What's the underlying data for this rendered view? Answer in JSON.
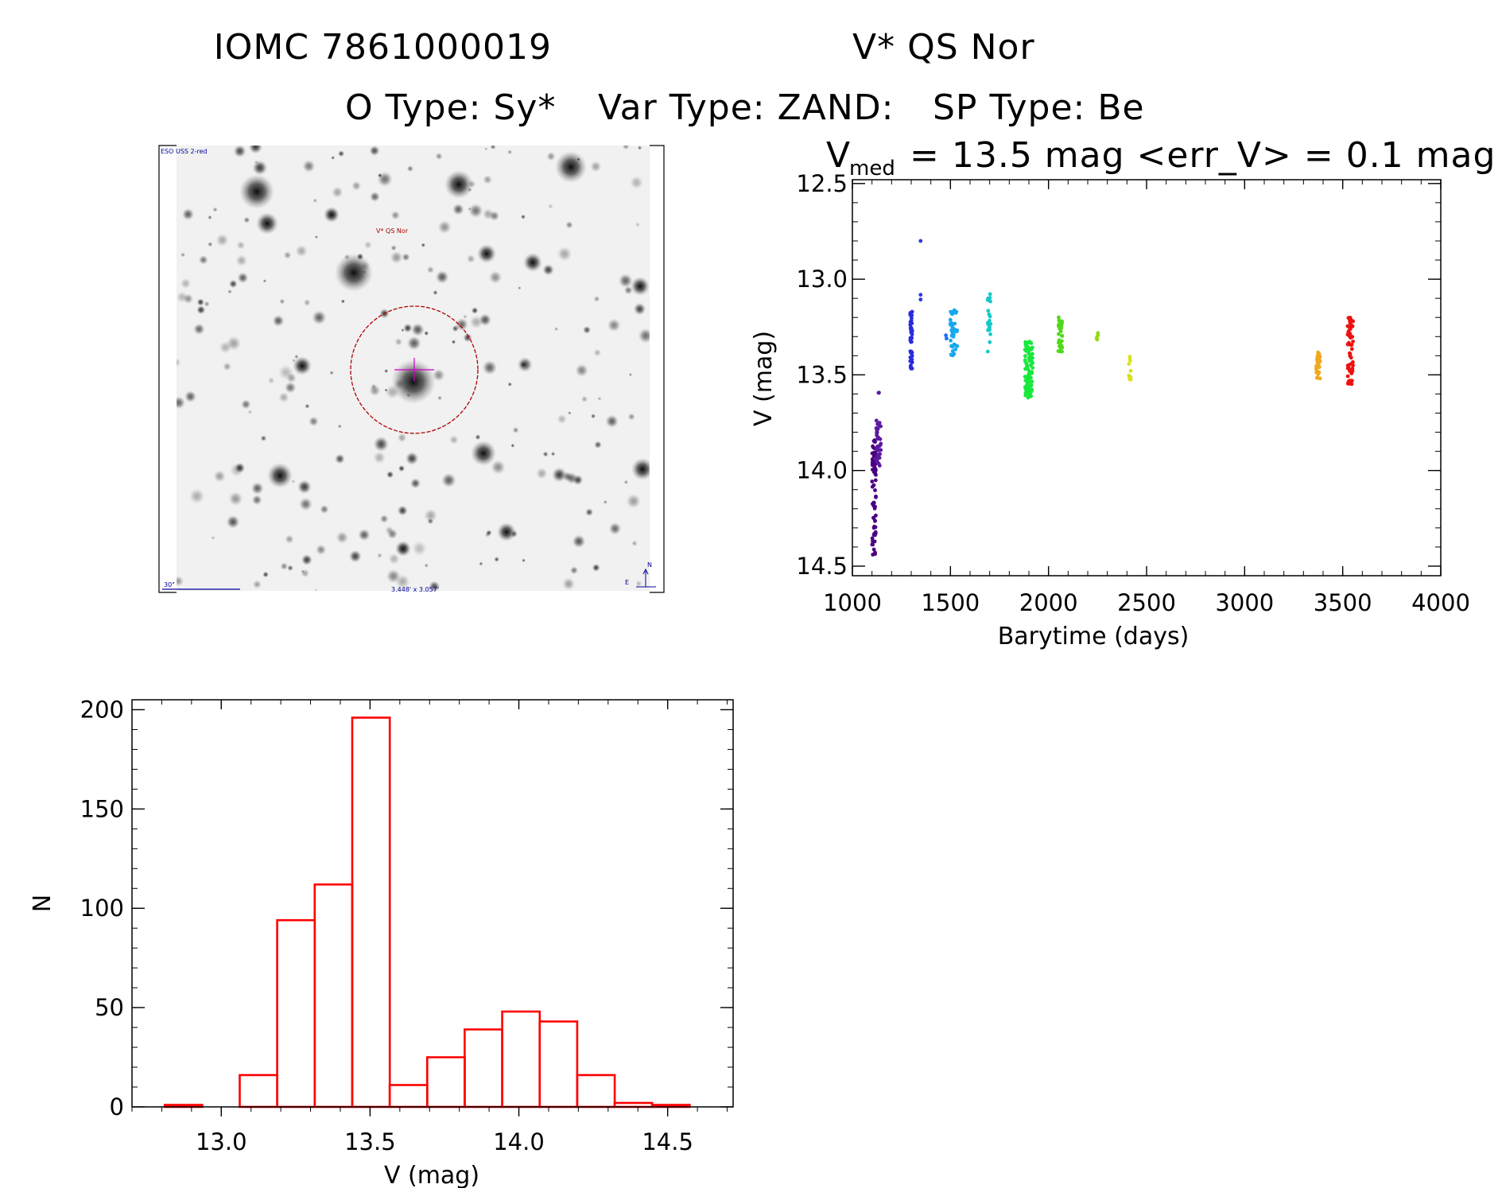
{
  "title_line1": {
    "catalog_id": "IOMC 7861000019",
    "object_name": "V* QS Nor"
  },
  "title_line2": {
    "otype": "O Type: Sy*",
    "vartype": "Var Type: ZAND:",
    "sptype": "SP Type: Be"
  },
  "finder": {
    "survey_label": "ESO USS 2-red",
    "target_label": "V* QS Nor",
    "scale_label": "30\"",
    "fov_label": "3.448' x 3.057'",
    "north_label": "N",
    "east_label": "E",
    "colors": {
      "circle": "#b00000",
      "label": "#b00000",
      "survey": "#000099",
      "crosshair": "#cc00cc"
    }
  },
  "chart_data": [
    {
      "type": "scatter",
      "title": {
        "prefix": "V",
        "subscript": "med",
        "suffix": "= 13.5 mag <err_V> = 0.1 mag"
      },
      "xlabel": "Barytime (days)",
      "ylabel": "V (mag)",
      "xlim": [
        1000,
        4000
      ],
      "ylim": [
        14.55,
        12.48
      ],
      "y_inverted": true,
      "xticks": [
        "1000",
        "1500",
        "2000",
        "2500",
        "3000",
        "3500",
        "4000"
      ],
      "yticks": [
        "12.5",
        "13.0",
        "13.5",
        "14.0",
        "14.5"
      ],
      "grid": false,
      "clusters": [
        {
          "x_range": [
            1100,
            1120
          ],
          "y_range": [
            13.84,
            14.48
          ],
          "n": 70,
          "color": "#4b0082"
        },
        {
          "x_range": [
            1122,
            1145
          ],
          "y_range": [
            13.73,
            13.98
          ],
          "n": 35,
          "color": "#5a1aa0"
        },
        {
          "x_range": [
            1133,
            1138
          ],
          "y_range": [
            13.58,
            13.65
          ],
          "n": 2,
          "color": "#5a1aa0"
        },
        {
          "x_range": [
            1295,
            1305
          ],
          "y_range": [
            13.17,
            13.48
          ],
          "n": 45,
          "color": "#2a2add"
        },
        {
          "x_range": [
            1345,
            1352
          ],
          "y_range": [
            13.07,
            13.12
          ],
          "n": 2,
          "color": "#2a3ae8"
        },
        {
          "x_range": [
            1347,
            1349
          ],
          "y_range": [
            12.8,
            12.81
          ],
          "n": 1,
          "color": "#2a3ae8"
        },
        {
          "x_range": [
            1475,
            1485
          ],
          "y_range": [
            13.29,
            13.32
          ],
          "n": 2,
          "color": "#1f6ef2"
        },
        {
          "x_range": [
            1495,
            1535
          ],
          "y_range": [
            13.14,
            13.4
          ],
          "n": 40,
          "color": "#17a8ee"
        },
        {
          "x_range": [
            1690,
            1705
          ],
          "y_range": [
            13.06,
            13.38
          ],
          "n": 22,
          "color": "#16c9c9"
        },
        {
          "x_range": [
            1880,
            1920
          ],
          "y_range": [
            13.32,
            13.62
          ],
          "n": 85,
          "color": "#18e83c"
        },
        {
          "x_range": [
            2050,
            2070
          ],
          "y_range": [
            13.2,
            13.39
          ],
          "n": 35,
          "color": "#52d81a"
        },
        {
          "x_range": [
            2245,
            2255
          ],
          "y_range": [
            13.27,
            13.33
          ],
          "n": 6,
          "color": "#9ad818"
        },
        {
          "x_range": [
            2410,
            2420
          ],
          "y_range": [
            13.4,
            13.53
          ],
          "n": 10,
          "color": "#d8e21c"
        },
        {
          "x_range": [
            3365,
            3385
          ],
          "y_range": [
            13.38,
            13.54
          ],
          "n": 30,
          "color": "#f2a81e"
        },
        {
          "x_range": [
            3525,
            3555
          ],
          "y_range": [
            13.2,
            13.55
          ],
          "n": 60,
          "color": "#ee1111"
        }
      ]
    },
    {
      "type": "bar",
      "subtype": "histogram",
      "xlabel": "V (mag)",
      "ylabel": "N",
      "xlim": [
        12.7,
        14.72
      ],
      "ylim": [
        0,
        205
      ],
      "xticks": [
        "13.0",
        "13.5",
        "14.0",
        "14.5"
      ],
      "yticks": [
        "0",
        "50",
        "100",
        "150",
        "200"
      ],
      "bin_edges": [
        12.81,
        12.936,
        13.062,
        13.188,
        13.314,
        13.44,
        13.566,
        13.692,
        13.818,
        13.944,
        14.07,
        14.196,
        14.322,
        14.448,
        14.574
      ],
      "counts": [
        1,
        0,
        16,
        94,
        112,
        196,
        11,
        25,
        39,
        48,
        43,
        16,
        2,
        1
      ],
      "color": "#ff0000"
    }
  ]
}
